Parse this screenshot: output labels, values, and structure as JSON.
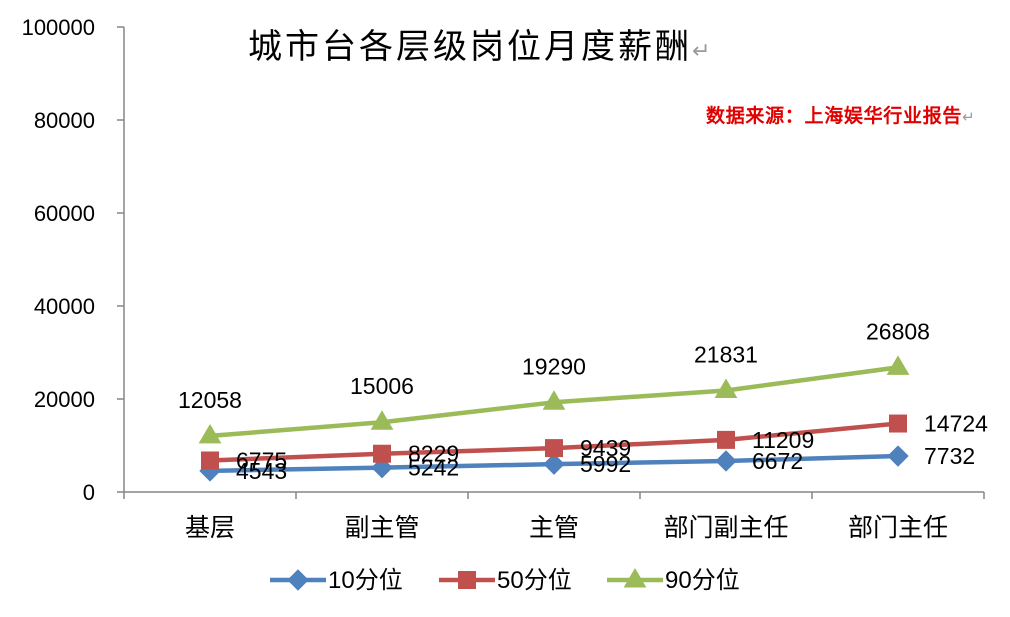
{
  "chart_data": {
    "type": "line",
    "title": "城市台各层级岗位月度薪酬",
    "title_mark": "↵",
    "source": "数据来源：上海娱华行业报告",
    "source_mark": "↵",
    "source_color": "#E00000",
    "axis_color": "#868686",
    "categories": [
      "基层",
      "副主管",
      "主管",
      "部门副主任",
      "部门主任"
    ],
    "ylim": [
      0,
      100000
    ],
    "yticks": [
      0,
      20000,
      40000,
      60000,
      80000,
      100000
    ],
    "grid": false,
    "legend": "bottom",
    "series": [
      {
        "name": "10分位",
        "values": [
          4543,
          5242,
          5992,
          6672,
          7732
        ],
        "color": "#4F81BD",
        "marker": "diamond",
        "data_labels": "right"
      },
      {
        "name": "50分位",
        "values": [
          6775,
          8229,
          9439,
          11209,
          14724
        ],
        "color": "#C0504D",
        "marker": "square",
        "data_labels": "right"
      },
      {
        "name": "90分位",
        "values": [
          12058,
          15006,
          19290,
          21831,
          26808
        ],
        "color": "#9BBB59",
        "marker": "triangle",
        "data_labels": "above"
      }
    ]
  }
}
